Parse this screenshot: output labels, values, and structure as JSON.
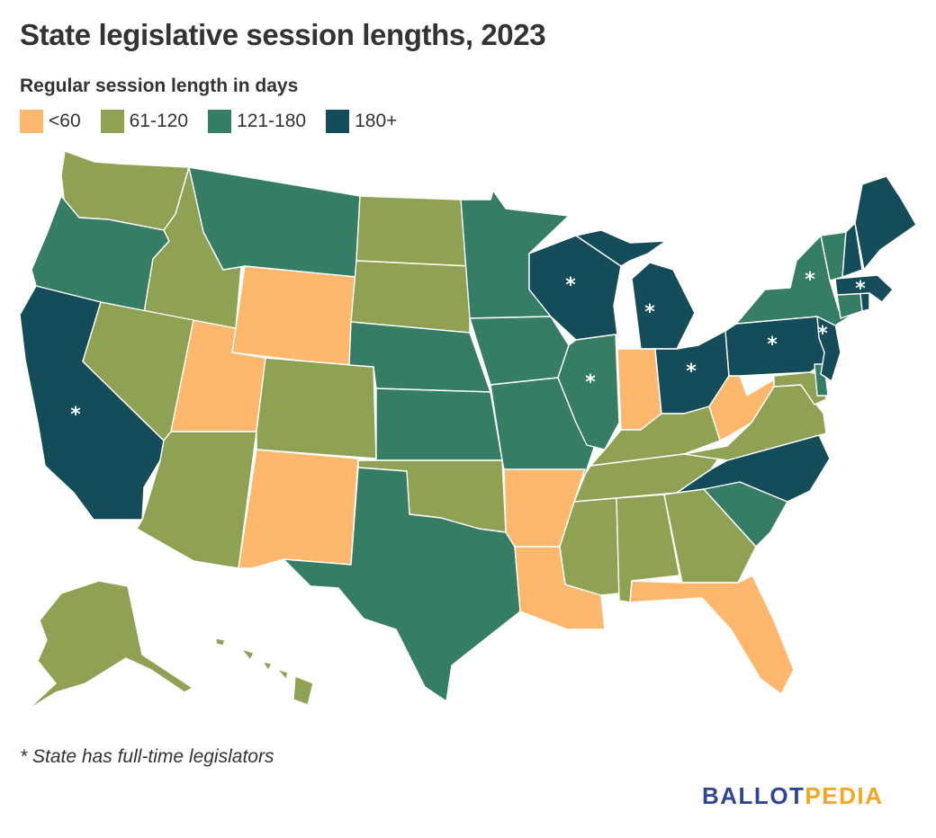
{
  "title": "State legislative session lengths, 2023",
  "subtitle": "Regular session length in days",
  "colors": {
    "under_60": "#fdb86e",
    "d61_120": "#8fa153",
    "d121_180": "#367d66",
    "d180_plus": "#144d59",
    "brand_blue": "#2f4596",
    "brand_orange": "#f5a623"
  },
  "legend": [
    {
      "label": "<60",
      "color": "#fdb86e"
    },
    {
      "label": "61-120",
      "color": "#8fa153"
    },
    {
      "label": "121-180",
      "color": "#367d66"
    },
    {
      "label": "180+",
      "color": "#144d59"
    }
  ],
  "footnote": "* State has full-time legislators",
  "star_symbol": "*",
  "brand": {
    "part1": "BALLOT",
    "part2": "PEDIA"
  },
  "states": {
    "WA": {
      "category": "61-120"
    },
    "OR": {
      "category": "121-180"
    },
    "CA": {
      "category": "180+",
      "full_time": true
    },
    "ID": {
      "category": "61-120"
    },
    "NV": {
      "category": "61-120"
    },
    "MT": {
      "category": "121-180"
    },
    "WY": {
      "category": "<60"
    },
    "UT": {
      "category": "<60"
    },
    "AZ": {
      "category": "61-120"
    },
    "CO": {
      "category": "61-120"
    },
    "NM": {
      "category": "<60"
    },
    "ND": {
      "category": "61-120"
    },
    "SD": {
      "category": "61-120"
    },
    "NE": {
      "category": "121-180"
    },
    "KS": {
      "category": "121-180"
    },
    "OK": {
      "category": "61-120"
    },
    "TX": {
      "category": "121-180"
    },
    "MN": {
      "category": "121-180"
    },
    "IA": {
      "category": "121-180"
    },
    "MO": {
      "category": "121-180"
    },
    "AR": {
      "category": "<60"
    },
    "LA": {
      "category": "<60"
    },
    "WI": {
      "category": "180+",
      "full_time": true
    },
    "IL": {
      "category": "121-180",
      "full_time": true
    },
    "MI": {
      "category": "180+",
      "full_time": true
    },
    "IN": {
      "category": "<60"
    },
    "OH": {
      "category": "180+",
      "full_time": true
    },
    "KY": {
      "category": "61-120"
    },
    "TN": {
      "category": "61-120"
    },
    "MS": {
      "category": "61-120"
    },
    "AL": {
      "category": "61-120"
    },
    "GA": {
      "category": "61-120"
    },
    "FL": {
      "category": "<60"
    },
    "SC": {
      "category": "121-180"
    },
    "NC": {
      "category": "180+"
    },
    "VA": {
      "category": "61-120"
    },
    "WV": {
      "category": "<60"
    },
    "MD": {
      "category": "61-120"
    },
    "DE": {
      "category": "121-180"
    },
    "PA": {
      "category": "180+",
      "full_time": true
    },
    "NJ": {
      "category": "180+",
      "full_time": true
    },
    "NY": {
      "category": "121-180",
      "full_time": true
    },
    "CT": {
      "category": "121-180"
    },
    "RI": {
      "category": "180+"
    },
    "MA": {
      "category": "180+",
      "full_time": true
    },
    "VT": {
      "category": "121-180"
    },
    "NH": {
      "category": "180+"
    },
    "ME": {
      "category": "180+"
    },
    "AK": {
      "category": "61-120"
    },
    "HI": {
      "category": "61-120"
    }
  }
}
